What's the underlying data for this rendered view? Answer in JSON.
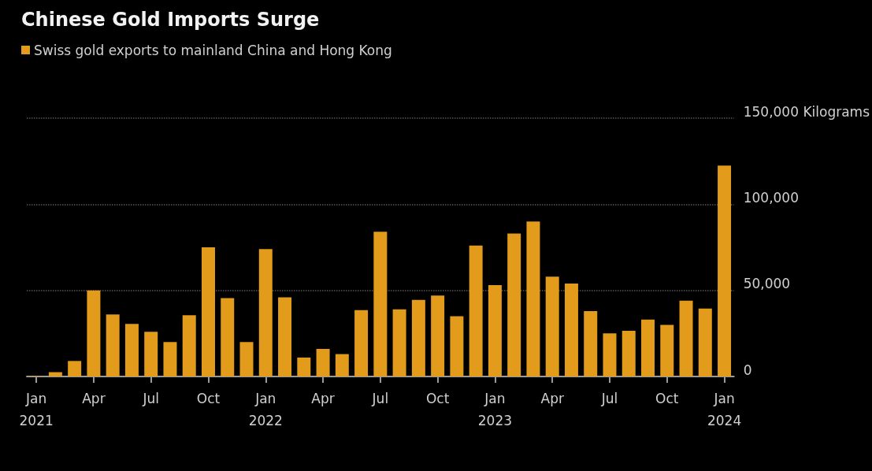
{
  "chart_data": {
    "type": "bar",
    "title": "Chinese Gold Imports Surge",
    "categories": [
      "Jan\n2021",
      null,
      null,
      "Apr",
      null,
      null,
      "Jul",
      null,
      null,
      "Oct",
      null,
      null,
      "Jan\n2022",
      null,
      null,
      "Apr",
      null,
      null,
      "Jul",
      null,
      null,
      "Oct",
      null,
      null,
      "Jan\n2023",
      null,
      null,
      "Apr",
      null,
      null,
      "Jul",
      null,
      null,
      "Oct",
      null,
      null,
      "Jan\n2024"
    ],
    "series": [
      {
        "name": "Swiss gold exports to mainland China and Hong Kong",
        "color": "#e39b1b",
        "values": [
          300,
          2500,
          9000,
          50000,
          36000,
          30500,
          26000,
          20000,
          35500,
          75000,
          45500,
          20000,
          74000,
          46000,
          11000,
          16000,
          13000,
          38500,
          84000,
          39000,
          44500,
          47000,
          35000,
          76000,
          53000,
          83000,
          90000,
          58000,
          54000,
          38000,
          25000,
          26500,
          33000,
          30000,
          44000,
          39500,
          122500
        ]
      }
    ],
    "ylim": [
      0,
      150000
    ],
    "yticks": [
      0,
      {
        "value": 50000,
        "label": "50,000"
      },
      {
        "value": 100000,
        "label": "100,000"
      },
      {
        "value": 150000,
        "label": "150,000 Kilograms"
      }
    ],
    "grid": "y",
    "legend": "top left"
  }
}
